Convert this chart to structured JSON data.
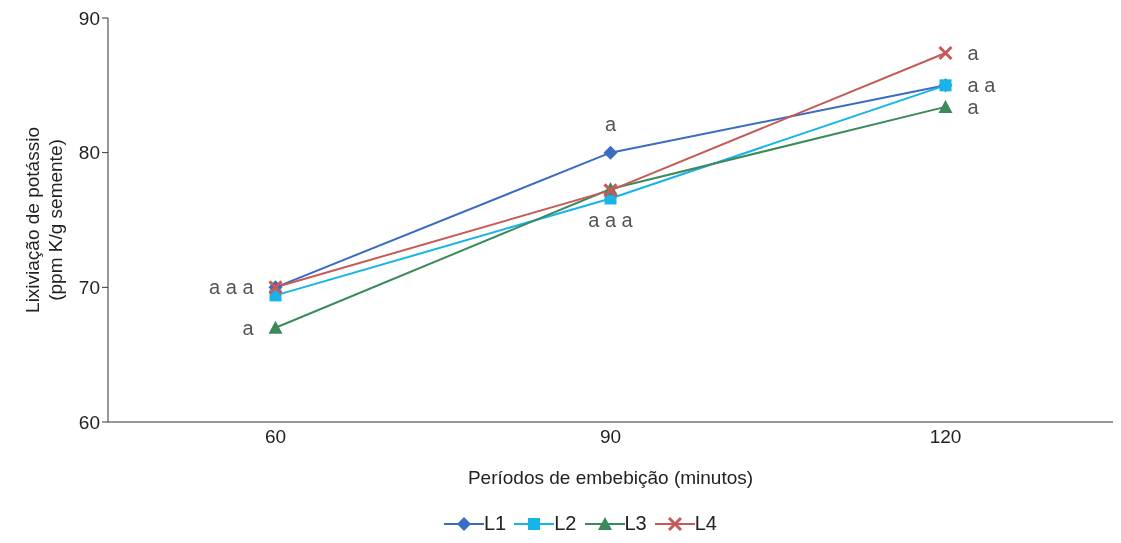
{
  "chart_data": {
    "type": "line",
    "xlabel": "Períodos de embebição (minutos)",
    "ylabel": "Lixiviação de potássio\n(ppm K/g semente)",
    "categories": [
      "60",
      "90",
      "120"
    ],
    "series": [
      {
        "name": "L1",
        "color": "#3a6cc0",
        "marker": "diamond",
        "values": [
          70,
          80,
          85
        ]
      },
      {
        "name": "L2",
        "color": "#16b4e8",
        "marker": "square",
        "values": [
          69.4,
          76.6,
          85
        ]
      },
      {
        "name": "L3",
        "color": "#3c8a5c",
        "marker": "triangle",
        "values": [
          67,
          77.3,
          83.4
        ]
      },
      {
        "name": "L4",
        "color": "#c65a5a",
        "marker": "cross",
        "values": [
          70,
          77.2,
          87.4
        ]
      }
    ],
    "ylim": [
      60,
      90
    ],
    "yticks": [
      60,
      70,
      80,
      90
    ],
    "grid": false,
    "legend": "bottom",
    "annotations": [
      {
        "text": "a a a",
        "x": "60",
        "y": 70
      },
      {
        "text": "a",
        "x": "60",
        "y": 67
      },
      {
        "text": "a",
        "x": "90",
        "y": 80
      },
      {
        "text": "a a a",
        "x": "90",
        "y": 77.2
      },
      {
        "text": "a",
        "x": "120",
        "y": 87.4
      },
      {
        "text": "a a",
        "x": "120",
        "y": 85
      },
      {
        "text": "a",
        "x": "120",
        "y": 83.4
      }
    ]
  }
}
